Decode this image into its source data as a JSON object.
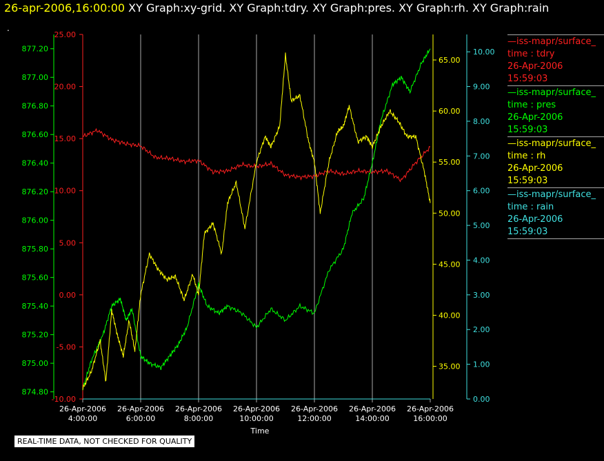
{
  "title": {
    "date": "26-apr-2006,16:00:00",
    "rest": " XY Graph:xy-grid.  XY Graph:tdry.  XY Graph:pres.  XY Graph:rh.  XY Graph:rain"
  },
  "dot": ".",
  "note": "REAL-TIME DATA, NOT CHECKED FOR QUALITY",
  "colors": {
    "tdry": "#ff2020",
    "pres": "#00ff00",
    "rh": "#ffff00",
    "rain": "#40e0e0",
    "grid": "#aaaaaa"
  },
  "legend": [
    {
      "line1": "—iss-mapr/surface_",
      "line2": "time : tdry",
      "line3": "26-Apr-2006",
      "line4": "15:59:03",
      "color": "#ff2020"
    },
    {
      "line1": "—iss-mapr/surface_",
      "line2": "time : pres",
      "line3": "26-Apr-2006",
      "line4": "15:59:03",
      "color": "#00ff00"
    },
    {
      "line1": "—iss-mapr/surface_",
      "line2": "time : rh",
      "line3": "26-Apr-2006",
      "line4": "15:59:03",
      "color": "#ffff00"
    },
    {
      "line1": "—iss-mapr/surface_",
      "line2": "time : rain",
      "line3": "26-Apr-2006",
      "line4": "15:59:03",
      "color": "#40e0e0"
    }
  ],
  "chart_data": {
    "type": "line",
    "xlabel": "Time",
    "x_ticks": [
      {
        "d": "26-Apr-2006",
        "t": "4:00:00",
        "h": 4
      },
      {
        "d": "26-Apr-2006",
        "t": "6:00:00",
        "h": 6
      },
      {
        "d": "26-Apr-2006",
        "t": "8:00:00",
        "h": 8
      },
      {
        "d": "26-Apr-2006",
        "t": "10:00:00",
        "h": 10
      },
      {
        "d": "26-Apr-2006",
        "t": "12:00:00",
        "h": 12
      },
      {
        "d": "26-Apr-2006",
        "t": "14:00:00",
        "h": 14
      },
      {
        "d": "26-Apr-2006",
        "t": "16:00:00",
        "h": 16
      }
    ],
    "xlim": [
      4,
      16
    ],
    "axes": {
      "pres": {
        "range": [
          874.75,
          877.3
        ],
        "ticks": [
          "874.80",
          "875.00",
          "875.20",
          "875.40",
          "875.60",
          "875.80",
          "876.00",
          "876.20",
          "876.40",
          "876.60",
          "876.80",
          "877.00",
          "877.20"
        ]
      },
      "tdry": {
        "range": [
          -10,
          25
        ],
        "ticks": [
          "-10.00",
          "-5.00",
          "0.00",
          "5.00",
          "10.00",
          "15.00",
          "20.00",
          "25.00"
        ]
      },
      "rh": {
        "range": [
          31.8,
          67.5
        ],
        "ticks": [
          "35.00",
          "40.00",
          "45.00",
          "50.00",
          "55.00",
          "60.00",
          "65.00"
        ]
      },
      "rain": {
        "range": [
          0,
          10.5
        ],
        "ticks": [
          "0.00",
          "1.00",
          "2.00",
          "3.00",
          "4.00",
          "5.00",
          "6.00",
          "7.00",
          "8.00",
          "9.00",
          "10.00"
        ]
      }
    },
    "series": [
      {
        "name": "time : tdry",
        "axis": "tdry",
        "x": [
          4,
          4.5,
          5,
          5.5,
          6,
          6.5,
          7,
          7.5,
          8,
          8.5,
          9,
          9.5,
          10,
          10.5,
          11,
          11.5,
          12,
          12.5,
          13,
          13.5,
          14,
          14.5,
          15,
          15.5,
          16
        ],
        "y": [
          15.2,
          15.8,
          14.9,
          14.5,
          14.3,
          13.2,
          13.1,
          12.8,
          12.9,
          11.8,
          11.9,
          12.5,
          12.3,
          12.6,
          11.5,
          11.3,
          11.4,
          11.9,
          11.6,
          11.9,
          11.8,
          11.9,
          11.0,
          12.7,
          14.2
        ]
      },
      {
        "name": "time : pres",
        "axis": "pres",
        "x": [
          4,
          4.3,
          4.7,
          5,
          5.3,
          5.5,
          5.7,
          6,
          6.3,
          6.7,
          7,
          7.3,
          7.6,
          8,
          8.3,
          8.7,
          9,
          9.5,
          10,
          10.5,
          11,
          11.5,
          12,
          12.5,
          13,
          13.3,
          13.7,
          14,
          14.3,
          14.7,
          15,
          15.3,
          15.7,
          16
        ],
        "y": [
          874.82,
          875.02,
          875.2,
          875.4,
          875.45,
          875.3,
          875.38,
          875.05,
          875.0,
          874.97,
          875.05,
          875.13,
          875.25,
          875.55,
          875.4,
          875.35,
          875.4,
          875.35,
          875.25,
          875.38,
          875.3,
          875.4,
          875.35,
          875.65,
          875.8,
          876.05,
          876.15,
          876.4,
          876.7,
          876.95,
          877.0,
          876.9,
          877.1,
          877.2
        ]
      },
      {
        "name": "time : rh",
        "axis": "rh",
        "x": [
          4,
          4.3,
          4.6,
          4.8,
          5,
          5.2,
          5.4,
          5.6,
          5.8,
          6,
          6.3,
          6.6,
          6.9,
          7.2,
          7.5,
          7.8,
          8,
          8.2,
          8.5,
          8.8,
          9,
          9.3,
          9.6,
          10,
          10.3,
          10.5,
          10.8,
          11,
          11.2,
          11.5,
          11.8,
          12,
          12.2,
          12.5,
          12.8,
          13,
          13.2,
          13.5,
          13.8,
          14,
          14.3,
          14.6,
          14.9,
          15.2,
          15.5,
          15.8,
          16
        ],
        "y": [
          32.8,
          34.5,
          37.5,
          33.5,
          40.5,
          38.0,
          36.0,
          39.5,
          36.5,
          42.0,
          46.0,
          44.5,
          43.5,
          43.8,
          41.5,
          44.0,
          42.0,
          48.0,
          49.0,
          46.0,
          51.0,
          53.0,
          48.5,
          55.0,
          57.5,
          56.5,
          58.5,
          65.5,
          61.0,
          61.5,
          57.0,
          55.0,
          50.0,
          55.0,
          58.0,
          58.5,
          60.5,
          57.0,
          57.5,
          56.5,
          58.5,
          60.0,
          59.0,
          57.5,
          57.5,
          54.0,
          51.0
        ]
      },
      {
        "name": "time : rain",
        "axis": "rain",
        "x": [
          4,
          16
        ],
        "y": [
          0,
          0
        ]
      }
    ]
  }
}
